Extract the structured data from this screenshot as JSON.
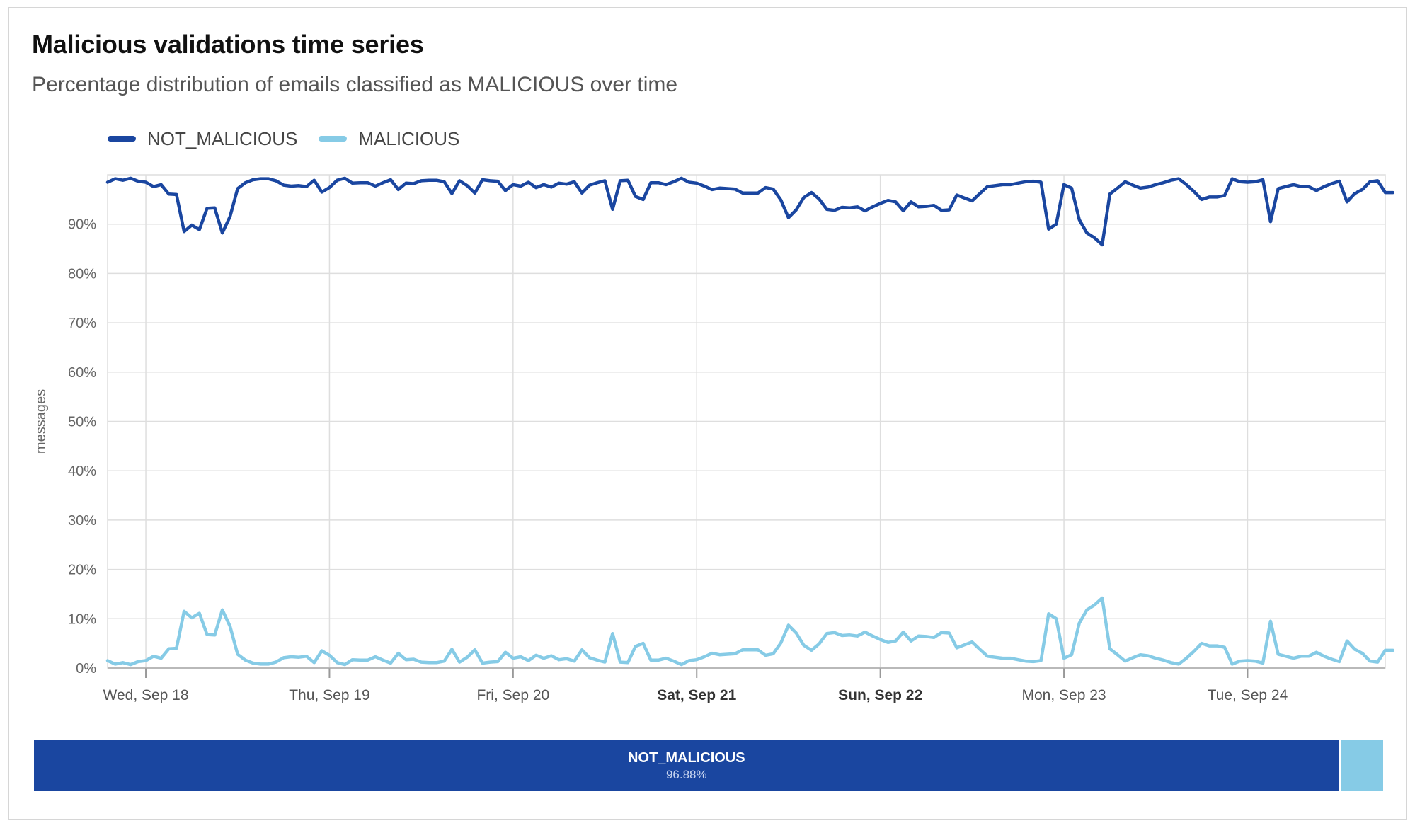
{
  "header": {
    "title": "Malicious validations time series",
    "subtitle": "Percentage distribution of emails classified as MALICIOUS over time"
  },
  "legend": [
    {
      "label": "NOT_MALICIOUS",
      "color": "#1a46a0"
    },
    {
      "label": "MALICIOUS",
      "color": "#86cbe6"
    }
  ],
  "summary": {
    "segments": [
      {
        "label": "NOT_MALICIOUS",
        "value": "96.88%",
        "fraction": 0.9688,
        "color": "#1a46a0"
      },
      {
        "label": "MALICIOUS",
        "value": "",
        "fraction": 0.0312,
        "color": "#86cbe6"
      }
    ]
  },
  "chart_data": {
    "type": "line",
    "ylabel": "messages",
    "xlabel": "",
    "ylim": [
      0,
      100
    ],
    "yticks": [
      {
        "value": 0,
        "label": "0%"
      },
      {
        "value": 10,
        "label": "10%"
      },
      {
        "value": 20,
        "label": "20%"
      },
      {
        "value": 30,
        "label": "30%"
      },
      {
        "value": 40,
        "label": "40%"
      },
      {
        "value": 50,
        "label": "50%"
      },
      {
        "value": 60,
        "label": "60%"
      },
      {
        "value": 70,
        "label": "70%"
      },
      {
        "value": 80,
        "label": "80%"
      },
      {
        "value": 90,
        "label": "90%"
      }
    ],
    "xlim": [
      "2024-09-17T19:00",
      "2024-09-24T18:00"
    ],
    "xticks": [
      {
        "value": "2024-09-18T00:00",
        "label": "Wed, Sep 18",
        "bold": false
      },
      {
        "value": "2024-09-19T00:00",
        "label": "Thu, Sep 19",
        "bold": false
      },
      {
        "value": "2024-09-20T00:00",
        "label": "Fri, Sep 20",
        "bold": false
      },
      {
        "value": "2024-09-21T00:00",
        "label": "Sat, Sep 21",
        "bold": true
      },
      {
        "value": "2024-09-22T00:00",
        "label": "Sun, Sep 22",
        "bold": true
      },
      {
        "value": "2024-09-23T00:00",
        "label": "Mon, Sep 23",
        "bold": false
      },
      {
        "value": "2024-09-24T00:00",
        "label": "Tue, Sep 24",
        "bold": false
      }
    ],
    "grid": true,
    "legend_position": "top-left",
    "interval": "hourly",
    "start": "2024-09-17T19:00",
    "series": [
      {
        "name": "NOT_MALICIOUS",
        "color": "#1a46a0",
        "values": [
          98.5,
          99.2,
          98.9,
          99.3,
          98.7,
          98.5,
          97.6,
          98.0,
          96.1,
          96.0,
          88.5,
          89.8,
          88.9,
          93.2,
          93.3,
          88.2,
          91.5,
          97.2,
          98.4,
          99.0,
          99.2,
          99.2,
          98.8,
          97.9,
          97.7,
          97.8,
          97.6,
          98.9,
          96.5,
          97.4,
          98.9,
          99.3,
          98.3,
          98.4,
          98.4,
          97.7,
          98.4,
          99.0,
          97.0,
          98.3,
          98.2,
          98.8,
          98.9,
          98.9,
          98.6,
          96.2,
          98.8,
          97.8,
          96.3,
          99.0,
          98.8,
          98.7,
          96.8,
          98.0,
          97.7,
          98.5,
          97.4,
          98.0,
          97.5,
          98.3,
          98.1,
          98.6,
          96.3,
          97.9,
          98.4,
          98.8,
          93.0,
          98.8,
          98.9,
          95.6,
          95.0,
          98.4,
          98.4,
          98.0,
          98.6,
          99.3,
          98.5,
          98.3,
          97.7,
          97.0,
          97.3,
          97.2,
          97.1,
          96.3,
          96.3,
          96.3,
          97.4,
          97.1,
          94.9,
          91.3,
          92.9,
          95.4,
          96.4,
          95.1,
          93.0,
          92.8,
          93.4,
          93.3,
          93.5,
          92.7,
          93.5,
          94.2,
          94.8,
          94.5,
          92.7,
          94.5,
          93.5,
          93.6,
          93.8,
          92.8,
          92.9,
          95.9,
          95.3,
          94.7,
          96.2,
          97.6,
          97.8,
          98.0,
          98.0,
          98.3,
          98.6,
          98.7,
          98.5,
          89.0,
          90.0,
          98.0,
          97.3,
          90.9,
          88.2,
          87.2,
          85.8,
          96.1,
          97.3,
          98.6,
          97.9,
          97.3,
          97.5,
          98.0,
          98.4,
          98.9,
          99.2,
          98.0,
          96.6,
          95.0,
          95.5,
          95.5,
          95.8,
          99.2,
          98.6,
          98.5,
          98.6,
          99.0,
          90.5,
          97.2,
          97.6,
          98.0,
          97.6,
          97.6,
          96.8,
          97.6,
          98.2,
          98.7,
          94.5,
          96.2,
          97.0,
          98.6,
          98.8,
          96.4,
          96.4
        ]
      },
      {
        "name": "MALICIOUS",
        "color": "#86cbe6",
        "values": [
          1.5,
          0.8,
          1.1,
          0.7,
          1.3,
          1.5,
          2.4,
          2.0,
          3.9,
          4.0,
          11.5,
          10.2,
          11.1,
          6.8,
          6.7,
          11.8,
          8.5,
          2.8,
          1.6,
          1.0,
          0.8,
          0.8,
          1.2,
          2.1,
          2.3,
          2.2,
          2.4,
          1.1,
          3.5,
          2.6,
          1.1,
          0.7,
          1.7,
          1.6,
          1.6,
          2.3,
          1.6,
          1.0,
          3.0,
          1.7,
          1.8,
          1.2,
          1.1,
          1.1,
          1.4,
          3.8,
          1.2,
          2.2,
          3.7,
          1.0,
          1.2,
          1.3,
          3.2,
          2.0,
          2.3,
          1.5,
          2.6,
          2.0,
          2.5,
          1.7,
          1.9,
          1.4,
          3.7,
          2.1,
          1.6,
          1.2,
          7.0,
          1.2,
          1.1,
          4.4,
          5.0,
          1.6,
          1.6,
          2.0,
          1.4,
          0.7,
          1.5,
          1.7,
          2.3,
          3.0,
          2.7,
          2.8,
          2.9,
          3.7,
          3.7,
          3.7,
          2.6,
          2.9,
          5.1,
          8.7,
          7.1,
          4.6,
          3.6,
          4.9,
          7.0,
          7.2,
          6.6,
          6.7,
          6.5,
          7.3,
          6.5,
          5.8,
          5.2,
          5.5,
          7.3,
          5.5,
          6.5,
          6.4,
          6.2,
          7.2,
          7.1,
          4.1,
          4.7,
          5.3,
          3.8,
          2.4,
          2.2,
          2.0,
          2.0,
          1.7,
          1.4,
          1.3,
          1.5,
          11.0,
          10.0,
          2.0,
          2.7,
          9.1,
          11.8,
          12.8,
          14.2,
          3.9,
          2.7,
          1.4,
          2.1,
          2.7,
          2.5,
          2.0,
          1.6,
          1.1,
          0.8,
          2.0,
          3.4,
          5.0,
          4.5,
          4.5,
          4.2,
          0.8,
          1.4,
          1.5,
          1.4,
          1.0,
          9.5,
          2.8,
          2.4,
          2.0,
          2.4,
          2.4,
          3.2,
          2.4,
          1.8,
          1.3,
          5.5,
          3.8,
          3.0,
          1.4,
          1.2,
          3.6,
          3.6
        ]
      }
    ]
  }
}
